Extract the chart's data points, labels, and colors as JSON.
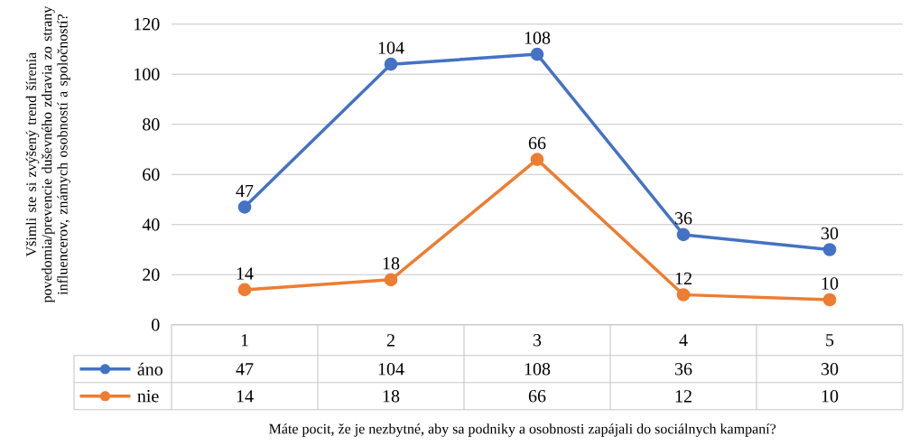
{
  "chart_data": {
    "type": "line",
    "legend": "bottom",
    "annotations": [
      "Máte pocit, že je nezbytné, aby sa podniky a osobnosti zapájali do sociálnych kampaní?"
    ],
    "ylabel": "Všimli ste si zvýšený trend šírenia povedomia/prevencie duševného zdravia zo strany influencerov, známych osobností a spoločností?",
    "categories": [
      "1",
      "2",
      "3",
      "4",
      "5"
    ],
    "series": [
      {
        "name": "áno",
        "color": "#4472c4",
        "values": [
          47,
          104,
          108,
          36,
          30
        ],
        "value_labels": [
          "47",
          "104",
          "108",
          "36",
          "30"
        ]
      },
      {
        "name": "nie",
        "color": "#ed7d31",
        "values": [
          14,
          18,
          66,
          12,
          10
        ],
        "value_labels": [
          "14",
          "18",
          "66",
          "12",
          "10"
        ]
      }
    ],
    "ylim": [
      0,
      120
    ],
    "yticks": [
      0,
      20,
      40,
      60,
      80,
      100,
      120
    ],
    "grid": "y",
    "data_labels": true,
    "marker": "circle",
    "line_style": "solid"
  }
}
